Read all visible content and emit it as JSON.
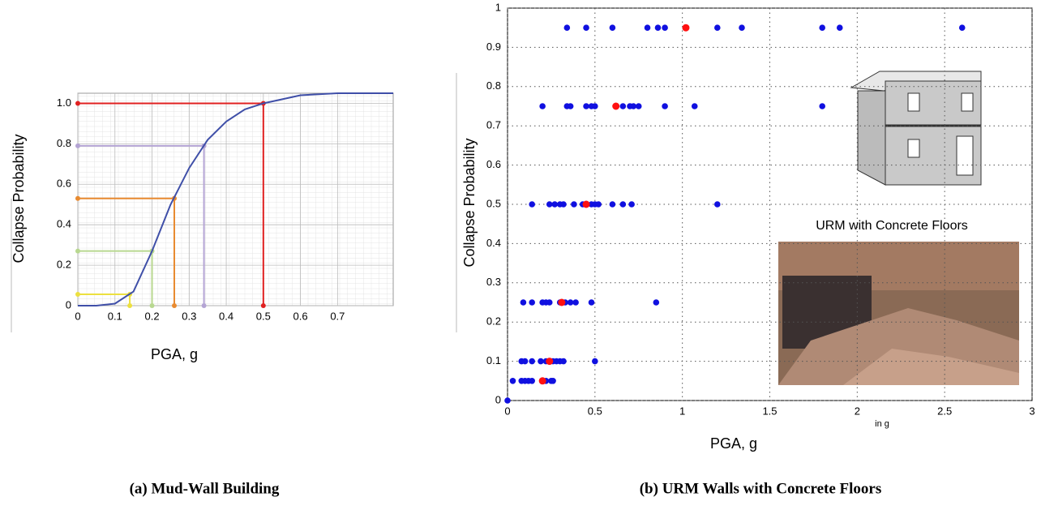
{
  "chart_data": [
    {
      "type": "line",
      "y_label": "Collapse Probability",
      "x_label": "PGA, g",
      "x": [
        0,
        0.05,
        0.1,
        0.15,
        0.2,
        0.25,
        0.3,
        0.35,
        0.4,
        0.45,
        0.5,
        0.55,
        0.6,
        0.7,
        0.85
      ],
      "values": [
        0,
        0,
        0.01,
        0.07,
        0.27,
        0.5,
        0.68,
        0.82,
        0.91,
        0.97,
        1.0,
        1.02,
        1.04,
        1.05,
        1.05
      ],
      "color": "#3f4fa8",
      "markers": [
        {
          "x": 0.14,
          "y": 0.056,
          "color": "#ece040"
        },
        {
          "x": 0.2,
          "y": 0.27,
          "color": "#b8d890"
        },
        {
          "x": 0.26,
          "y": 0.53,
          "color": "#e88a30"
        },
        {
          "x": 0.34,
          "y": 0.79,
          "color": "#b4a4d4"
        },
        {
          "x": 0.5,
          "y": 1.0,
          "color": "#e02020"
        }
      ],
      "xlim": [
        0,
        0.85
      ],
      "ylim": [
        0,
        1.05
      ],
      "xticks": [
        0,
        0.1,
        0.2,
        0.3,
        0.4,
        0.5,
        0.6,
        0.7
      ],
      "yticks": [
        0,
        0.2,
        0.4,
        0.6,
        0.8,
        {
          "value": 1,
          "label": "1.0"
        }
      ],
      "grid": true
    },
    {
      "type": "scatter",
      "y_label": "Collapse Probability",
      "x_label": "PGA, g",
      "x_unit_note": "in g",
      "inset_caption": "URM with Concrete Floors",
      "series": [
        {
          "color": "#1010e0",
          "x": [
            0.34,
            0.45,
            0.6,
            0.8,
            0.86,
            0.9,
            1.2,
            1.34,
            1.8,
            1.9,
            2.6,
            0.2,
            0.34,
            0.36,
            0.45,
            0.48,
            0.5,
            0.66,
            0.7,
            0.72,
            0.75,
            0.9,
            1.07,
            1.8,
            0.14,
            0.24,
            0.27,
            0.3,
            0.32,
            0.38,
            0.43,
            0.48,
            0.5,
            0.52,
            0.6,
            0.66,
            0.71,
            1.2,
            0.09,
            0.14,
            0.2,
            0.22,
            0.24,
            0.3,
            0.33,
            0.36,
            0.39,
            0.48,
            0.85,
            0.08,
            0.1,
            0.14,
            0.19,
            0.22,
            0.26,
            0.28,
            0.3,
            0.32,
            0.5,
            0.03,
            0.08,
            0.1,
            0.12,
            0.14,
            0.2,
            0.22,
            0.25,
            0.26,
            0
          ],
          "y": [
            0.95,
            0.95,
            0.95,
            0.95,
            0.95,
            0.95,
            0.95,
            0.95,
            0.95,
            0.95,
            0.95,
            0.75,
            0.75,
            0.75,
            0.75,
            0.75,
            0.75,
            0.75,
            0.75,
            0.75,
            0.75,
            0.75,
            0.75,
            0.75,
            0.5,
            0.5,
            0.5,
            0.5,
            0.5,
            0.5,
            0.5,
            0.5,
            0.5,
            0.5,
            0.5,
            0.5,
            0.5,
            0.5,
            0.25,
            0.25,
            0.25,
            0.25,
            0.25,
            0.25,
            0.25,
            0.25,
            0.25,
            0.25,
            0.25,
            0.1,
            0.1,
            0.1,
            0.1,
            0.1,
            0.1,
            0.1,
            0.1,
            0.1,
            0.1,
            0.05,
            0.05,
            0.05,
            0.05,
            0.05,
            0.05,
            0.05,
            0.05,
            0.05,
            0
          ]
        },
        {
          "color": "#ff1010",
          "x": [
            1.02,
            0.62,
            0.45,
            0.31,
            0.24,
            0.2
          ],
          "y": [
            0.95,
            0.75,
            0.5,
            0.25,
            0.1,
            0.05
          ]
        }
      ],
      "xlim": [
        0,
        3
      ],
      "ylim": [
        0,
        1
      ],
      "xticks": [
        0,
        0.5,
        1,
        1.5,
        2,
        2.5,
        3
      ],
      "yticks": [
        0,
        0.1,
        0.2,
        0.3,
        0.4,
        0.5,
        0.6,
        0.7,
        0.8,
        0.9,
        1
      ],
      "grid": true
    }
  ],
  "captions": [
    "(a) Mud-Wall Building",
    "(b) URM Walls with Concrete Floors"
  ]
}
